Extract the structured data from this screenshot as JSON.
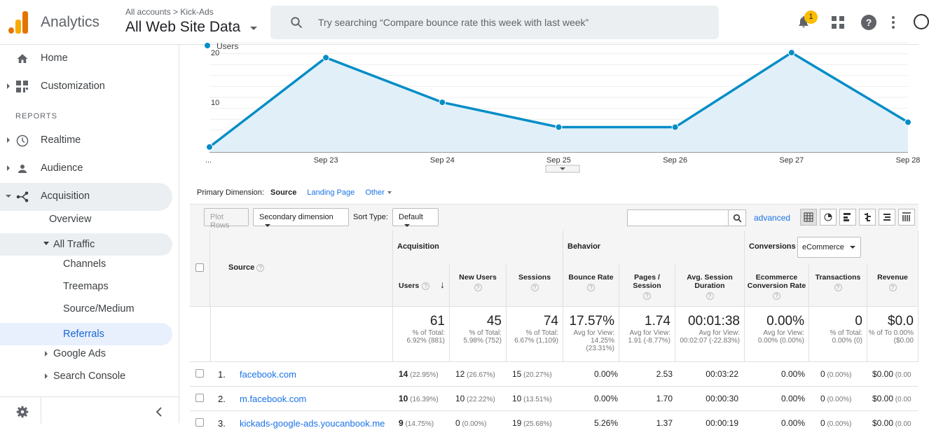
{
  "header": {
    "app_name": "Analytics",
    "account_crumb": "All accounts > Kick-Ads",
    "view_name": "All Web Site Data",
    "search_placeholder": "Try searching “Compare bounce rate this week with last week”",
    "notification_count": "1"
  },
  "sidebar": {
    "home": "Home",
    "customization": "Customization",
    "reports_header": "REPORTS",
    "realtime": "Realtime",
    "audience": "Audience",
    "acquisition": "Acquisition",
    "overview": "Overview",
    "all_traffic": "All Traffic",
    "channels": "Channels",
    "treemaps": "Treemaps",
    "source_medium": "Source/Medium",
    "referrals": "Referrals",
    "google_ads": "Google Ads",
    "search_console": "Search Console"
  },
  "chart_data": {
    "type": "area",
    "series": [
      {
        "name": "Users",
        "values": [
          1,
          19,
          10,
          5,
          5,
          20,
          6
        ]
      }
    ],
    "categories": [
      "...",
      "Sep 23",
      "Sep 24",
      "Sep 25",
      "Sep 26",
      "Sep 27",
      "Sep 28"
    ],
    "y_ticks": [
      10,
      20
    ],
    "ylim": [
      0,
      22
    ],
    "color": "#058dc7",
    "fill": "#e1f0f8"
  },
  "dimension": {
    "label": "Primary Dimension:",
    "selected": "Source",
    "link1": "Landing Page",
    "link2": "Other"
  },
  "toolbar": {
    "plot_rows": "Plot Rows",
    "secondary": "Secondary dimension",
    "sort_label": "Sort Type:",
    "sort_value": "Default",
    "advanced": "advanced"
  },
  "table": {
    "group_acquisition": "Acquisition",
    "group_behavior": "Behavior",
    "group_conversions": "Conversions",
    "conversion_select": "eCommerce",
    "col_source": "Source",
    "cols": [
      "Users",
      "New Users",
      "Sessions",
      "Bounce Rate",
      "Pages / Session",
      "Avg. Session Duration",
      "Ecommerce Conversion Rate",
      "Transactions",
      "Revenue"
    ],
    "totals": [
      {
        "big": "61",
        "sm": "% of Total: 6.92% (881)"
      },
      {
        "big": "45",
        "sm": "% of Total: 5.98% (752)"
      },
      {
        "big": "74",
        "sm": "% of Total: 6.67% (1,109)"
      },
      {
        "big": "17.57%",
        "sm": "Avg for View: 14.25% (23.31%)"
      },
      {
        "big": "1.74",
        "sm": "Avg for View: 1.91 (-8.77%)"
      },
      {
        "big": "00:01:38",
        "sm": "Avg for View: 00:02:07 (-22.83%)"
      },
      {
        "big": "0.00%",
        "sm": "Avg for View: 0.00% (0.00%)"
      },
      {
        "big": "0",
        "sm": "% of Total: 0.00% (0)"
      },
      {
        "big": "$0.0",
        "sm": "% of To 0.00% ($0.00"
      }
    ],
    "rows": [
      {
        "n": "1.",
        "src": "facebook.com",
        "users": "14",
        "users_pct": "(22.95%)",
        "new": "12",
        "new_pct": "(26.67%)",
        "sess": "15",
        "sess_pct": "(20.27%)",
        "bounce": "0.00%",
        "pps": "2.53",
        "dur": "00:03:22",
        "conv": "0.00%",
        "tx": "0",
        "tx_pct": "(0.00%)",
        "rev": "$0.00",
        "rev_pct": "(0.00"
      },
      {
        "n": "2.",
        "src": "m.facebook.com",
        "users": "10",
        "users_pct": "(16.39%)",
        "new": "10",
        "new_pct": "(22.22%)",
        "sess": "10",
        "sess_pct": "(13.51%)",
        "bounce": "0.00%",
        "pps": "1.70",
        "dur": "00:00:30",
        "conv": "0.00%",
        "tx": "0",
        "tx_pct": "(0.00%)",
        "rev": "$0.00",
        "rev_pct": "(0.00"
      },
      {
        "n": "3.",
        "src": "kickads-google-ads.youcanbook.me",
        "users": "9",
        "users_pct": "(14.75%)",
        "new": "0",
        "new_pct": "(0.00%)",
        "sess": "19",
        "sess_pct": "(25.68%)",
        "bounce": "5.26%",
        "pps": "1.37",
        "dur": "00:00:19",
        "conv": "0.00%",
        "tx": "0",
        "tx_pct": "(0.00%)",
        "rev": "$0.00",
        "rev_pct": "(0.00"
      }
    ]
  }
}
